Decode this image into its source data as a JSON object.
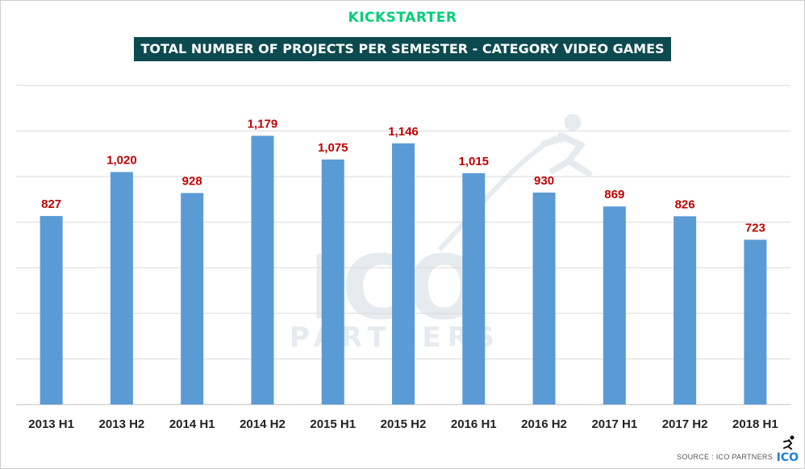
{
  "brand": "KICKSTARTER",
  "source_text": "SOURCE : ICO PARTNERS",
  "logo_text": "ICO",
  "watermark": {
    "main": "ICO",
    "sub": "PARTNERS"
  },
  "colors": {
    "bar": "#5b9bd5",
    "data_label": "#c00000",
    "title_bg": "#0d4a4f",
    "brand": "#05ce78",
    "grid": "#d9d9d9"
  },
  "chart_data": {
    "type": "bar",
    "title": "TOTAL NUMBER OF PROJECTS PER SEMESTER - CATEGORY VIDEO GAMES",
    "xlabel": "",
    "ylabel": "",
    "categories": [
      "2013 H1",
      "2013 H2",
      "2014 H1",
      "2014 H2",
      "2015 H1",
      "2015 H2",
      "2016 H1",
      "2016 H2",
      "2017 H1",
      "2017 H2",
      "2018 H1"
    ],
    "values": [
      827,
      1020,
      928,
      1179,
      1075,
      1146,
      1015,
      930,
      869,
      826,
      723
    ],
    "value_labels": [
      "827",
      "1,020",
      "928",
      "1,179",
      "1,075",
      "1,146",
      "1,015",
      "930",
      "869",
      "826",
      "723"
    ],
    "ylim": [
      0,
      1400
    ],
    "y_gridlines": [
      0,
      200,
      400,
      600,
      800,
      1000,
      1200,
      1400
    ],
    "y_tick_labels_visible": false,
    "grid": true,
    "data_labels": true,
    "legend": "none"
  }
}
